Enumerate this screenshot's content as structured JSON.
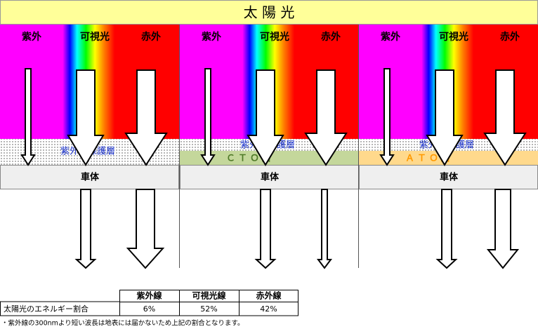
{
  "title": "太 陽 光",
  "panels": [
    {
      "spectrum_labels": [
        "紫外",
        "可視光",
        "赤外"
      ],
      "layers": [
        "紫外線保護層"
      ],
      "body": "車体"
    },
    {
      "spectrum_labels": [
        "紫外",
        "可視光",
        "赤外"
      ],
      "layers": [
        "紫外線保護層",
        "ＣＴＯ層"
      ],
      "body": "車体"
    },
    {
      "spectrum_labels": [
        "紫外",
        "可視光",
        "赤外"
      ],
      "layers": [
        "紫外線保護層",
        "ＡＴＯ層"
      ],
      "body": "車体"
    }
  ],
  "table": {
    "columns": [
      "紫外線",
      "可視光線",
      "赤外線"
    ],
    "rows": [
      {
        "label": "太陽光のエネルギー割合",
        "cells": [
          "6%",
          "52%",
          "42%"
        ]
      }
    ]
  },
  "note": "・紫外線の300nmより短い波長は地表には届かないため上記の割合となります。"
}
